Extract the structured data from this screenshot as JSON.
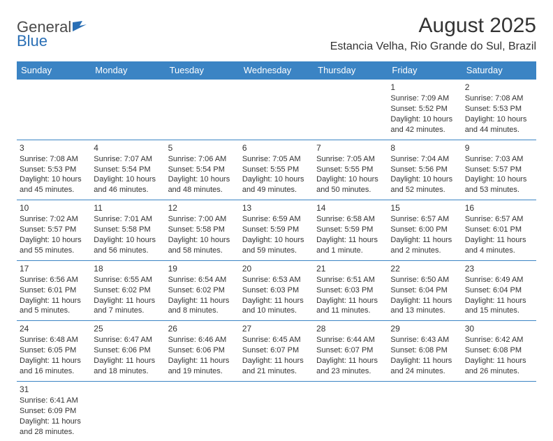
{
  "logo": {
    "text1": "General",
    "text2": "Blue"
  },
  "title": "August 2025",
  "location": "Estancia Velha, Rio Grande do Sul, Brazil",
  "colors": {
    "header_bg": "#3b84c4",
    "header_text": "#ffffff",
    "border": "#3b84c4",
    "text": "#333333",
    "logo_gray": "#4a4a4a",
    "logo_blue": "#2a6fb5",
    "background": "#ffffff"
  },
  "dayHeaders": [
    "Sunday",
    "Monday",
    "Tuesday",
    "Wednesday",
    "Thursday",
    "Friday",
    "Saturday"
  ],
  "weeks": [
    [
      null,
      null,
      null,
      null,
      null,
      {
        "n": "1",
        "sr": "Sunrise: 7:09 AM",
        "ss": "Sunset: 5:52 PM",
        "dl": "Daylight: 10 hours and 42 minutes."
      },
      {
        "n": "2",
        "sr": "Sunrise: 7:08 AM",
        "ss": "Sunset: 5:53 PM",
        "dl": "Daylight: 10 hours and 44 minutes."
      }
    ],
    [
      {
        "n": "3",
        "sr": "Sunrise: 7:08 AM",
        "ss": "Sunset: 5:53 PM",
        "dl": "Daylight: 10 hours and 45 minutes."
      },
      {
        "n": "4",
        "sr": "Sunrise: 7:07 AM",
        "ss": "Sunset: 5:54 PM",
        "dl": "Daylight: 10 hours and 46 minutes."
      },
      {
        "n": "5",
        "sr": "Sunrise: 7:06 AM",
        "ss": "Sunset: 5:54 PM",
        "dl": "Daylight: 10 hours and 48 minutes."
      },
      {
        "n": "6",
        "sr": "Sunrise: 7:05 AM",
        "ss": "Sunset: 5:55 PM",
        "dl": "Daylight: 10 hours and 49 minutes."
      },
      {
        "n": "7",
        "sr": "Sunrise: 7:05 AM",
        "ss": "Sunset: 5:55 PM",
        "dl": "Daylight: 10 hours and 50 minutes."
      },
      {
        "n": "8",
        "sr": "Sunrise: 7:04 AM",
        "ss": "Sunset: 5:56 PM",
        "dl": "Daylight: 10 hours and 52 minutes."
      },
      {
        "n": "9",
        "sr": "Sunrise: 7:03 AM",
        "ss": "Sunset: 5:57 PM",
        "dl": "Daylight: 10 hours and 53 minutes."
      }
    ],
    [
      {
        "n": "10",
        "sr": "Sunrise: 7:02 AM",
        "ss": "Sunset: 5:57 PM",
        "dl": "Daylight: 10 hours and 55 minutes."
      },
      {
        "n": "11",
        "sr": "Sunrise: 7:01 AM",
        "ss": "Sunset: 5:58 PM",
        "dl": "Daylight: 10 hours and 56 minutes."
      },
      {
        "n": "12",
        "sr": "Sunrise: 7:00 AM",
        "ss": "Sunset: 5:58 PM",
        "dl": "Daylight: 10 hours and 58 minutes."
      },
      {
        "n": "13",
        "sr": "Sunrise: 6:59 AM",
        "ss": "Sunset: 5:59 PM",
        "dl": "Daylight: 10 hours and 59 minutes."
      },
      {
        "n": "14",
        "sr": "Sunrise: 6:58 AM",
        "ss": "Sunset: 5:59 PM",
        "dl": "Daylight: 11 hours and 1 minute."
      },
      {
        "n": "15",
        "sr": "Sunrise: 6:57 AM",
        "ss": "Sunset: 6:00 PM",
        "dl": "Daylight: 11 hours and 2 minutes."
      },
      {
        "n": "16",
        "sr": "Sunrise: 6:57 AM",
        "ss": "Sunset: 6:01 PM",
        "dl": "Daylight: 11 hours and 4 minutes."
      }
    ],
    [
      {
        "n": "17",
        "sr": "Sunrise: 6:56 AM",
        "ss": "Sunset: 6:01 PM",
        "dl": "Daylight: 11 hours and 5 minutes."
      },
      {
        "n": "18",
        "sr": "Sunrise: 6:55 AM",
        "ss": "Sunset: 6:02 PM",
        "dl": "Daylight: 11 hours and 7 minutes."
      },
      {
        "n": "19",
        "sr": "Sunrise: 6:54 AM",
        "ss": "Sunset: 6:02 PM",
        "dl": "Daylight: 11 hours and 8 minutes."
      },
      {
        "n": "20",
        "sr": "Sunrise: 6:53 AM",
        "ss": "Sunset: 6:03 PM",
        "dl": "Daylight: 11 hours and 10 minutes."
      },
      {
        "n": "21",
        "sr": "Sunrise: 6:51 AM",
        "ss": "Sunset: 6:03 PM",
        "dl": "Daylight: 11 hours and 11 minutes."
      },
      {
        "n": "22",
        "sr": "Sunrise: 6:50 AM",
        "ss": "Sunset: 6:04 PM",
        "dl": "Daylight: 11 hours and 13 minutes."
      },
      {
        "n": "23",
        "sr": "Sunrise: 6:49 AM",
        "ss": "Sunset: 6:04 PM",
        "dl": "Daylight: 11 hours and 15 minutes."
      }
    ],
    [
      {
        "n": "24",
        "sr": "Sunrise: 6:48 AM",
        "ss": "Sunset: 6:05 PM",
        "dl": "Daylight: 11 hours and 16 minutes."
      },
      {
        "n": "25",
        "sr": "Sunrise: 6:47 AM",
        "ss": "Sunset: 6:06 PM",
        "dl": "Daylight: 11 hours and 18 minutes."
      },
      {
        "n": "26",
        "sr": "Sunrise: 6:46 AM",
        "ss": "Sunset: 6:06 PM",
        "dl": "Daylight: 11 hours and 19 minutes."
      },
      {
        "n": "27",
        "sr": "Sunrise: 6:45 AM",
        "ss": "Sunset: 6:07 PM",
        "dl": "Daylight: 11 hours and 21 minutes."
      },
      {
        "n": "28",
        "sr": "Sunrise: 6:44 AM",
        "ss": "Sunset: 6:07 PM",
        "dl": "Daylight: 11 hours and 23 minutes."
      },
      {
        "n": "29",
        "sr": "Sunrise: 6:43 AM",
        "ss": "Sunset: 6:08 PM",
        "dl": "Daylight: 11 hours and 24 minutes."
      },
      {
        "n": "30",
        "sr": "Sunrise: 6:42 AM",
        "ss": "Sunset: 6:08 PM",
        "dl": "Daylight: 11 hours and 26 minutes."
      }
    ],
    [
      {
        "n": "31",
        "sr": "Sunrise: 6:41 AM",
        "ss": "Sunset: 6:09 PM",
        "dl": "Daylight: 11 hours and 28 minutes."
      },
      null,
      null,
      null,
      null,
      null,
      null
    ]
  ]
}
